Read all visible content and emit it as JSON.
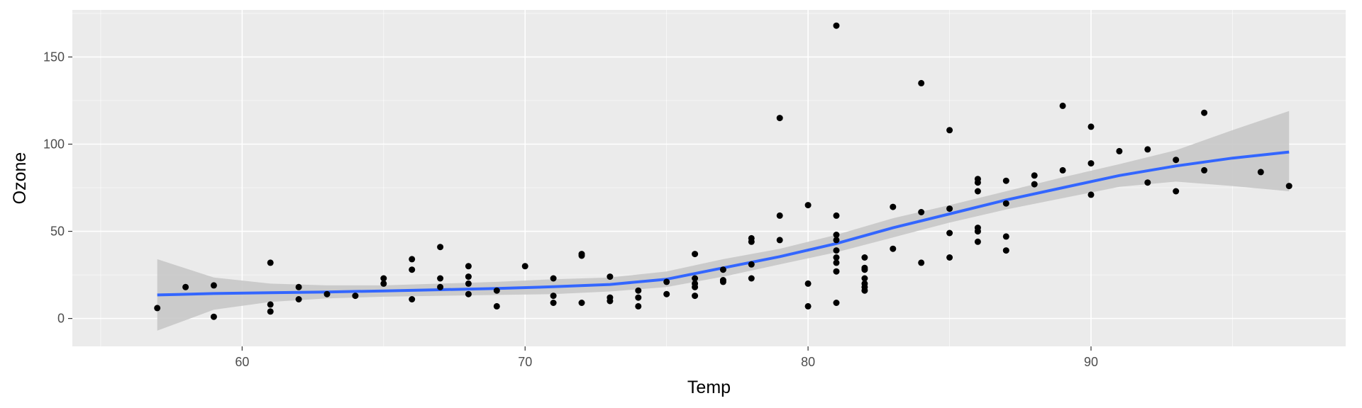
{
  "chart_data": {
    "type": "scatter",
    "title": "",
    "xlabel": "Temp",
    "ylabel": "Ozone",
    "xlim": [
      54.0,
      99.0
    ],
    "ylim": [
      -16.0,
      177.0
    ],
    "x_ticks": [
      60,
      70,
      80,
      90
    ],
    "y_ticks": [
      0,
      50,
      100,
      150
    ],
    "x_tick_labels": [
      "60",
      "70",
      "80",
      "90"
    ],
    "y_tick_labels": [
      "0",
      "50",
      "100",
      "150"
    ],
    "grid": true,
    "legend": "none",
    "colors": {
      "panel": "#ebebeb",
      "grid_major": "#ffffff",
      "points": "#000000",
      "smooth_line": "#3366ff",
      "confidence_band": "#c8c8c8"
    },
    "points": [
      [
        57,
        6
      ],
      [
        58,
        18
      ],
      [
        59,
        1
      ],
      [
        59,
        19
      ],
      [
        61,
        4
      ],
      [
        61,
        8
      ],
      [
        61,
        32
      ],
      [
        62,
        11
      ],
      [
        62,
        18
      ],
      [
        63,
        14
      ],
      [
        64,
        13
      ],
      [
        65,
        20
      ],
      [
        65,
        23
      ],
      [
        66,
        11
      ],
      [
        66,
        28
      ],
      [
        66,
        34
      ],
      [
        67,
        18
      ],
      [
        67,
        23
      ],
      [
        67,
        41
      ],
      [
        68,
        14
      ],
      [
        68,
        20
      ],
      [
        68,
        24
      ],
      [
        68,
        30
      ],
      [
        69,
        7
      ],
      [
        69,
        16
      ],
      [
        70,
        30
      ],
      [
        71,
        9
      ],
      [
        71,
        13
      ],
      [
        71,
        23
      ],
      [
        72,
        9
      ],
      [
        72,
        36
      ],
      [
        72,
        37
      ],
      [
        73,
        10
      ],
      [
        73,
        12
      ],
      [
        73,
        24
      ],
      [
        74,
        7
      ],
      [
        74,
        12
      ],
      [
        74,
        16
      ],
      [
        75,
        14
      ],
      [
        75,
        21
      ],
      [
        76,
        13
      ],
      [
        76,
        18
      ],
      [
        76,
        20
      ],
      [
        76,
        23
      ],
      [
        76,
        37
      ],
      [
        77,
        21
      ],
      [
        77,
        22
      ],
      [
        77,
        28
      ],
      [
        78,
        23
      ],
      [
        78,
        31
      ],
      [
        78,
        44
      ],
      [
        78,
        46
      ],
      [
        79,
        45
      ],
      [
        79,
        59
      ],
      [
        79,
        115
      ],
      [
        80,
        7
      ],
      [
        80,
        20
      ],
      [
        80,
        65
      ],
      [
        81,
        9
      ],
      [
        81,
        27
      ],
      [
        81,
        32
      ],
      [
        81,
        35
      ],
      [
        81,
        39
      ],
      [
        81,
        45
      ],
      [
        81,
        48
      ],
      [
        81,
        59
      ],
      [
        81,
        168
      ],
      [
        82,
        16
      ],
      [
        82,
        18
      ],
      [
        82,
        20
      ],
      [
        82,
        23
      ],
      [
        82,
        28
      ],
      [
        82,
        29
      ],
      [
        82,
        35
      ],
      [
        83,
        40
      ],
      [
        83,
        64
      ],
      [
        84,
        32
      ],
      [
        84,
        61
      ],
      [
        84,
        135
      ],
      [
        85,
        35
      ],
      [
        85,
        49
      ],
      [
        85,
        63
      ],
      [
        85,
        108
      ],
      [
        86,
        44
      ],
      [
        86,
        50
      ],
      [
        86,
        52
      ],
      [
        86,
        73
      ],
      [
        86,
        78
      ],
      [
        86,
        80
      ],
      [
        87,
        39
      ],
      [
        87,
        47
      ],
      [
        87,
        66
      ],
      [
        87,
        79
      ],
      [
        88,
        77
      ],
      [
        88,
        82
      ],
      [
        89,
        85
      ],
      [
        89,
        122
      ],
      [
        90,
        71
      ],
      [
        90,
        89
      ],
      [
        90,
        110
      ],
      [
        91,
        96
      ],
      [
        92,
        78
      ],
      [
        92,
        97
      ],
      [
        93,
        73
      ],
      [
        93,
        91
      ],
      [
        94,
        85
      ],
      [
        94,
        118
      ],
      [
        96,
        84
      ],
      [
        97,
        76
      ]
    ],
    "smooth": {
      "method": "loess",
      "x": [
        57,
        59,
        61,
        63,
        65,
        67,
        69,
        71,
        73,
        75,
        77,
        79,
        81,
        83,
        85,
        87,
        89,
        91,
        93,
        95,
        97
      ],
      "y": [
        13.5,
        14.3,
        14.8,
        15.2,
        15.8,
        16.5,
        17.2,
        18.2,
        19.5,
        22.5,
        29,
        35.5,
        43,
        52,
        60,
        68,
        75,
        82,
        87.5,
        92,
        95.5
      ],
      "lower": [
        -7,
        5,
        9.5,
        11.5,
        12.5,
        13,
        13.5,
        14,
        15.5,
        18,
        24,
        31,
        38,
        46.5,
        55,
        62.5,
        69,
        75.5,
        78.5,
        76,
        73
      ],
      "upper": [
        34,
        23.5,
        20,
        19,
        19,
        20,
        21,
        22.5,
        23.5,
        27,
        34,
        40,
        48,
        57.5,
        65,
        73,
        81,
        88.5,
        96.5,
        108,
        119
      ]
    }
  }
}
